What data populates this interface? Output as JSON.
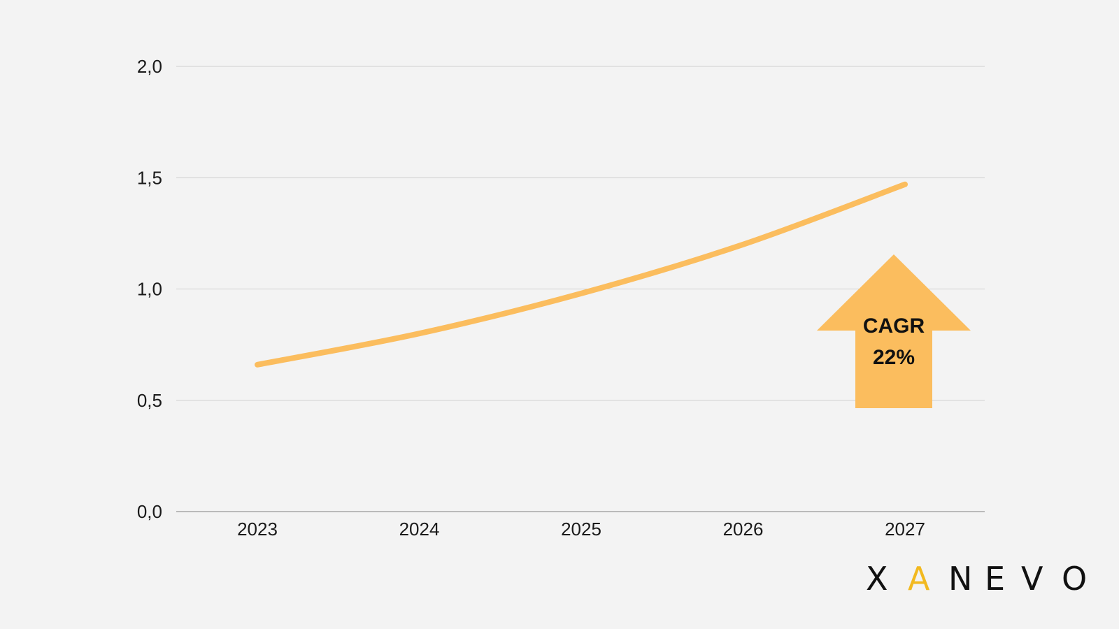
{
  "chart_data": {
    "type": "line",
    "x": [
      "2023",
      "2024",
      "2025",
      "2026",
      "2027"
    ],
    "series": [
      {
        "values": [
          0.66,
          0.8,
          0.98,
          1.2,
          1.47
        ]
      }
    ],
    "ylim": [
      0,
      2
    ],
    "yticks": [
      "0,0",
      "0,5",
      "1,0",
      "1,5",
      "2,0"
    ],
    "ytick_values": [
      0,
      0.5,
      1.0,
      1.5,
      2.0
    ],
    "grid": true,
    "line_color": "#fbbd5e",
    "annotation": {
      "line1": "CAGR",
      "line2": "22%",
      "color": "#fbbd5e"
    }
  },
  "logo": {
    "letters": [
      "X",
      "A",
      "N",
      "E",
      "V",
      "O"
    ],
    "colors": [
      "#111111",
      "#f2b91f",
      "#111111",
      "#111111",
      "#111111",
      "#111111"
    ]
  }
}
